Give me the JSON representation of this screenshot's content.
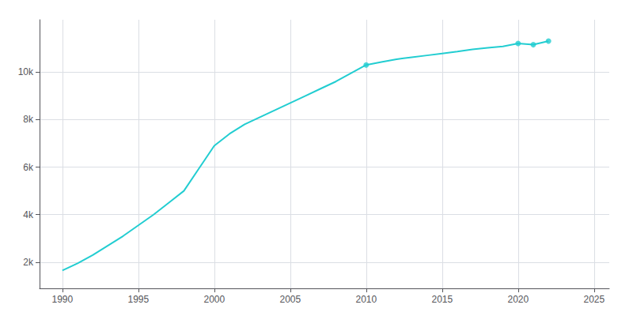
{
  "chart_data": {
    "type": "line",
    "series": [
      {
        "type": "line",
        "color": "#22cdd1",
        "x": [
          1990,
          1991,
          1992,
          1993,
          1994,
          1995,
          1996,
          1997,
          1998,
          1999,
          2000,
          2001,
          2002,
          2003,
          2004,
          2005,
          2006,
          2007,
          2008,
          2009,
          2010,
          2011,
          2012,
          2013,
          2014,
          2015,
          2016,
          2017,
          2018,
          2019,
          2020,
          2021,
          2022
        ],
        "values": [
          1650,
          1950,
          2300,
          2700,
          3100,
          3550,
          4000,
          4500,
          5000,
          5950,
          6900,
          7400,
          7800,
          8100,
          8400,
          8700,
          9000,
          9300,
          9600,
          9950,
          10300,
          10420,
          10540,
          10620,
          10700,
          10780,
          10860,
          10950,
          11020,
          11080,
          11200,
          11150,
          11300
        ]
      },
      {
        "type": "scatter",
        "color": "#22cdd1",
        "marker": "circle",
        "x": [
          2010,
          2020,
          2021,
          2022
        ],
        "values": [
          10300,
          11200,
          11150,
          11300
        ]
      }
    ],
    "xlim": [
      1988.5,
      2026
    ],
    "xticks": [
      1990,
      1995,
      2000,
      2005,
      2010,
      2015,
      2020,
      2025
    ],
    "ylim": [
      900,
      12200
    ],
    "yticks": [
      {
        "value": 2000,
        "label": "2k"
      },
      {
        "value": 4000,
        "label": "4k"
      },
      {
        "value": 6000,
        "label": "6k"
      },
      {
        "value": 8000,
        "label": "8k"
      },
      {
        "value": 10000,
        "label": "10k"
      }
    ],
    "grid": true
  }
}
